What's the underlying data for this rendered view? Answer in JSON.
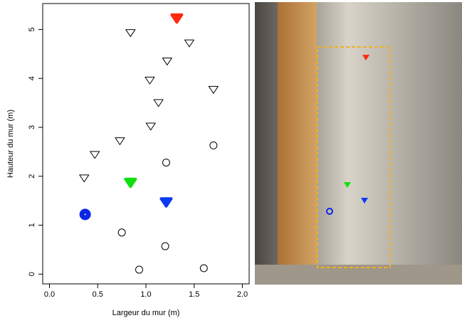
{
  "chart_data": {
    "type": "scatter",
    "xlabel": "Largeur du mur (m)",
    "ylabel": "Hauteur du mur (m)",
    "xlim": [
      -0.07,
      2.07
    ],
    "ylim": [
      -0.2,
      5.53
    ],
    "xticks": [
      {
        "value": 0,
        "label": "0.0"
      },
      {
        "value": 0.5,
        "label": "0.5"
      },
      {
        "value": 1,
        "label": "1.0"
      },
      {
        "value": 1.5,
        "label": "1.5"
      },
      {
        "value": 2,
        "label": "2.0"
      }
    ],
    "yticks": [
      0,
      1,
      2,
      3,
      4,
      5
    ],
    "series": [
      {
        "marker": "circle",
        "color": "#000000",
        "filled": false,
        "x": [
          0.93,
          1.2,
          0.75,
          1.21,
          1.7,
          1.6
        ],
        "values": [
          0.09,
          0.57,
          0.85,
          2.28,
          2.63,
          0.12
        ]
      },
      {
        "marker": "triangle",
        "color": "#000000",
        "filled": false,
        "x": [
          0.84,
          1.45,
          1.22,
          1.04,
          1.7,
          1.13,
          1.05,
          0.73,
          0.47,
          0.36
        ],
        "values": [
          4.94,
          4.73,
          4.36,
          3.97,
          3.78,
          3.51,
          3.03,
          2.73,
          2.45,
          1.97
        ]
      },
      {
        "marker": "circle",
        "color": "#0a28e6",
        "filled": true,
        "x": [
          0.37
        ],
        "values": [
          1.22
        ]
      },
      {
        "marker": "triangle",
        "color": "#ff2a10",
        "filled": true,
        "x": [
          1.32
        ],
        "values": [
          5.24
        ]
      },
      {
        "marker": "triangle",
        "color": "#10e010",
        "filled": true,
        "x": [
          0.84
        ],
        "values": [
          1.88
        ]
      },
      {
        "marker": "triangle",
        "color": "#0a3af0",
        "filled": true,
        "x": [
          1.21
        ],
        "values": [
          1.48
        ]
      }
    ]
  }
}
